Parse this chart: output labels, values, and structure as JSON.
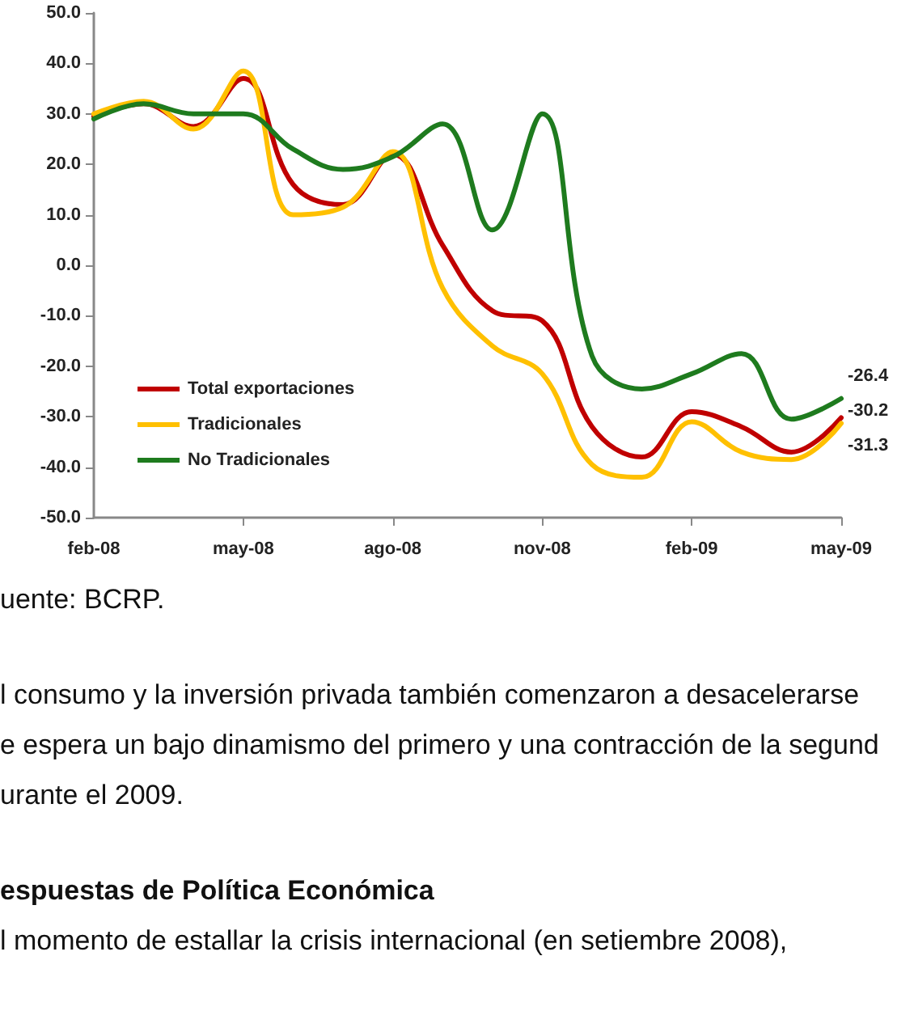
{
  "chart_data": {
    "type": "line",
    "categories": [
      "feb-08",
      null,
      null,
      "may-08",
      null,
      null,
      "ago-08",
      null,
      null,
      "nov-08",
      null,
      null,
      "feb-09",
      null,
      null,
      "may-09"
    ],
    "series": [
      {
        "name": "Total exportaciones",
        "color": "#c00000",
        "values": [
          29.5,
          32,
          27.5,
          37,
          16,
          12,
          22,
          4,
          -9,
          -11,
          -32,
          -38,
          -29,
          -32,
          -37,
          -30.2
        ],
        "value_labels": [
          null,
          null,
          null,
          null,
          null,
          null,
          null,
          null,
          null,
          null,
          null,
          null,
          null,
          null,
          null,
          "-30.2"
        ]
      },
      {
        "name": "Tradicionales",
        "color": "#ffc000",
        "values": [
          30,
          32.5,
          27,
          38.5,
          10,
          11.5,
          22.5,
          -4.5,
          -16,
          -21.5,
          -39.5,
          -42,
          -31,
          -37,
          -38.5,
          -31.3
        ],
        "value_labels": [
          null,
          null,
          null,
          null,
          null,
          null,
          null,
          null,
          null,
          null,
          null,
          null,
          null,
          null,
          null,
          "-31.3"
        ]
      },
      {
        "name": "No Tradicionales",
        "color": "#1e7b1e",
        "values": [
          29,
          32,
          30,
          30,
          23,
          19,
          21.5,
          28,
          7,
          30,
          -18,
          -24.5,
          -21.5,
          -17.5,
          -30.5,
          -26.4
        ],
        "value_labels": [
          null,
          null,
          null,
          null,
          null,
          null,
          null,
          null,
          null,
          null,
          null,
          null,
          null,
          null,
          null,
          "-26.4"
        ]
      }
    ],
    "ylim": [
      -50,
      50
    ],
    "yticks": [
      {
        "value": -50,
        "label": "-50.0"
      },
      {
        "value": -40,
        "label": "-40.0"
      },
      {
        "value": -30,
        "label": "-30.0"
      },
      {
        "value": -20,
        "label": "-20.0"
      },
      {
        "value": -10,
        "label": "-10.0"
      },
      {
        "value": 0,
        "label": "0.0"
      },
      {
        "value": 10,
        "label": "10.0"
      },
      {
        "value": 20,
        "label": "20.0"
      },
      {
        "value": 30,
        "label": "30.0"
      },
      {
        "value": 40,
        "label": "40.0"
      },
      {
        "value": 50,
        "label": "50.0"
      }
    ],
    "grid": false,
    "legend": "bottom left",
    "marker": "none",
    "line_style": "solid",
    "annotations": [
      "uente: BCRP.",
      "l consumo y la inversión privada también comenzaron a desacelerarse",
      "e espera un bajo dinamismo del primero y una contracción de la segund",
      "urante el 2009.",
      "espuestas de Política Económica",
      "l momento de estallar la crisis internacional (en setiembre 2008),"
    ]
  }
}
